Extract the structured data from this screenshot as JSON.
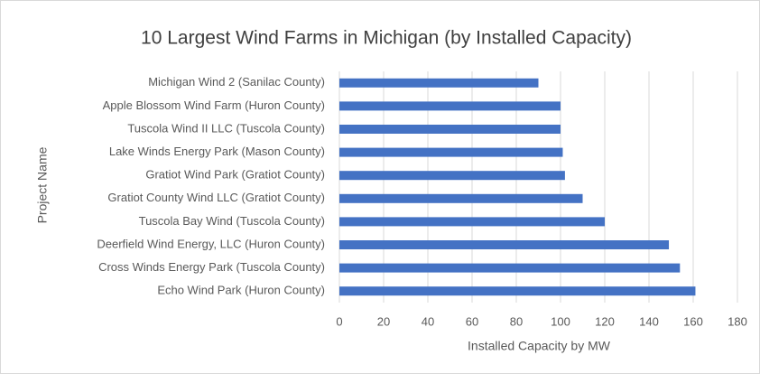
{
  "chart_data": {
    "type": "bar",
    "orientation": "horizontal",
    "title": "10 Largest Wind Farms in Michigan (by Installed Capacity)",
    "x_label": "Installed Capacity by MW",
    "y_label": "Project Name",
    "categories": [
      "Michigan Wind 2 (Sanilac County)",
      "Apple Blossom Wind Farm (Huron County)",
      "Tuscola Wind II LLC (Tuscola County)",
      "Lake Winds Energy Park (Mason County)",
      "Gratiot Wind Park (Gratiot County)",
      "Gratiot County Wind LLC (Gratiot County)",
      "Tuscola Bay Wind (Tuscola County)",
      "Deerfield Wind Energy, LLC (Huron County)",
      "Cross Winds Energy Park (Tuscola County)",
      "Echo Wind Park (Huron County)"
    ],
    "values": [
      90,
      100,
      100,
      101,
      102,
      110,
      120,
      149,
      154,
      161
    ],
    "color": "#4472c4",
    "xlim": [
      0,
      180
    ],
    "xticks": [
      0,
      20,
      40,
      60,
      80,
      100,
      120,
      140,
      160,
      180
    ],
    "grid": true
  }
}
